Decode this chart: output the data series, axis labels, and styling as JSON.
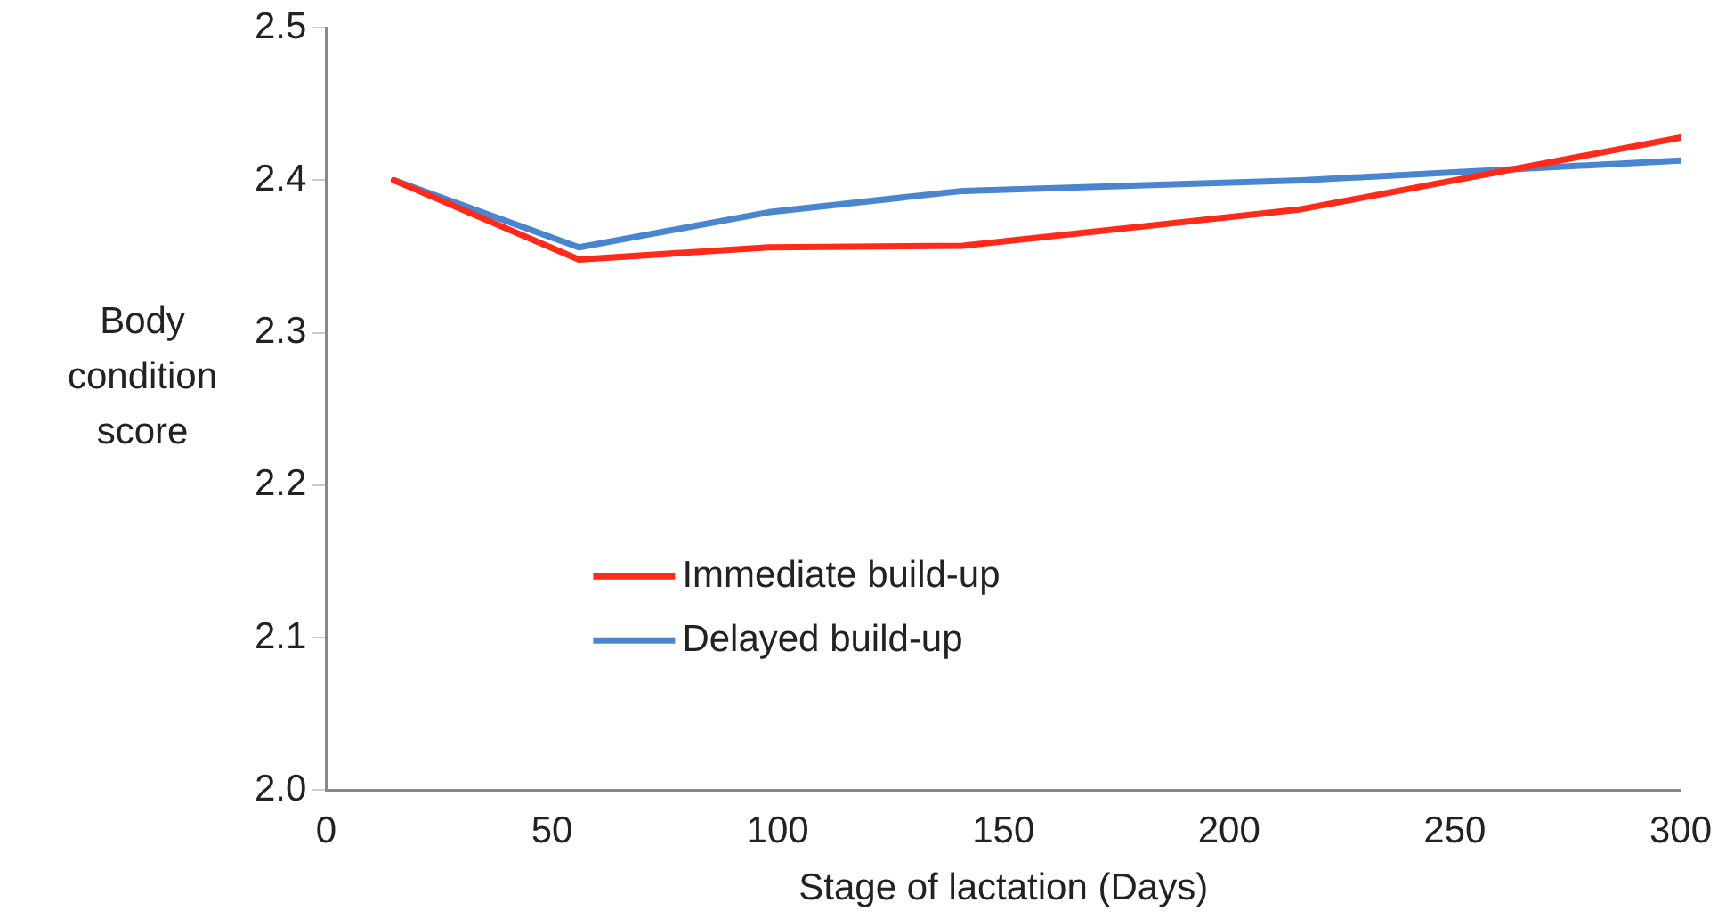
{
  "chart_data": {
    "type": "line",
    "xlabel": "Stage of lactation (Days)",
    "ylabel": "Body condition score",
    "x": [
      15,
      56,
      98,
      141,
      216,
      300
    ],
    "series": [
      {
        "name": "Immediate build-up",
        "color": "#ff2a1a",
        "values": [
          2.4,
          2.348,
          2.356,
          2.357,
          2.381,
          2.428
        ]
      },
      {
        "name": "Delayed build-up",
        "color": "#4a86d0",
        "values": [
          2.4,
          2.356,
          2.379,
          2.393,
          2.4,
          2.413
        ]
      }
    ],
    "xlim": [
      0,
      300
    ],
    "xticks": [
      0,
      50,
      100,
      150,
      200,
      250,
      300
    ],
    "ylim": [
      2.0,
      2.5
    ],
    "yticks": [
      {
        "value": 2.0,
        "label": "2.0"
      },
      {
        "value": 2.1,
        "label": "2.1"
      },
      {
        "value": 2.2,
        "label": "2.2"
      },
      {
        "value": 2.3,
        "label": "2.3"
      },
      {
        "value": 2.4,
        "label": "2.4"
      },
      {
        "value": 2.5,
        "label": "2.5"
      }
    ],
    "grid": false,
    "legend": "bottom left",
    "marker": "none",
    "line_style": "solid"
  }
}
